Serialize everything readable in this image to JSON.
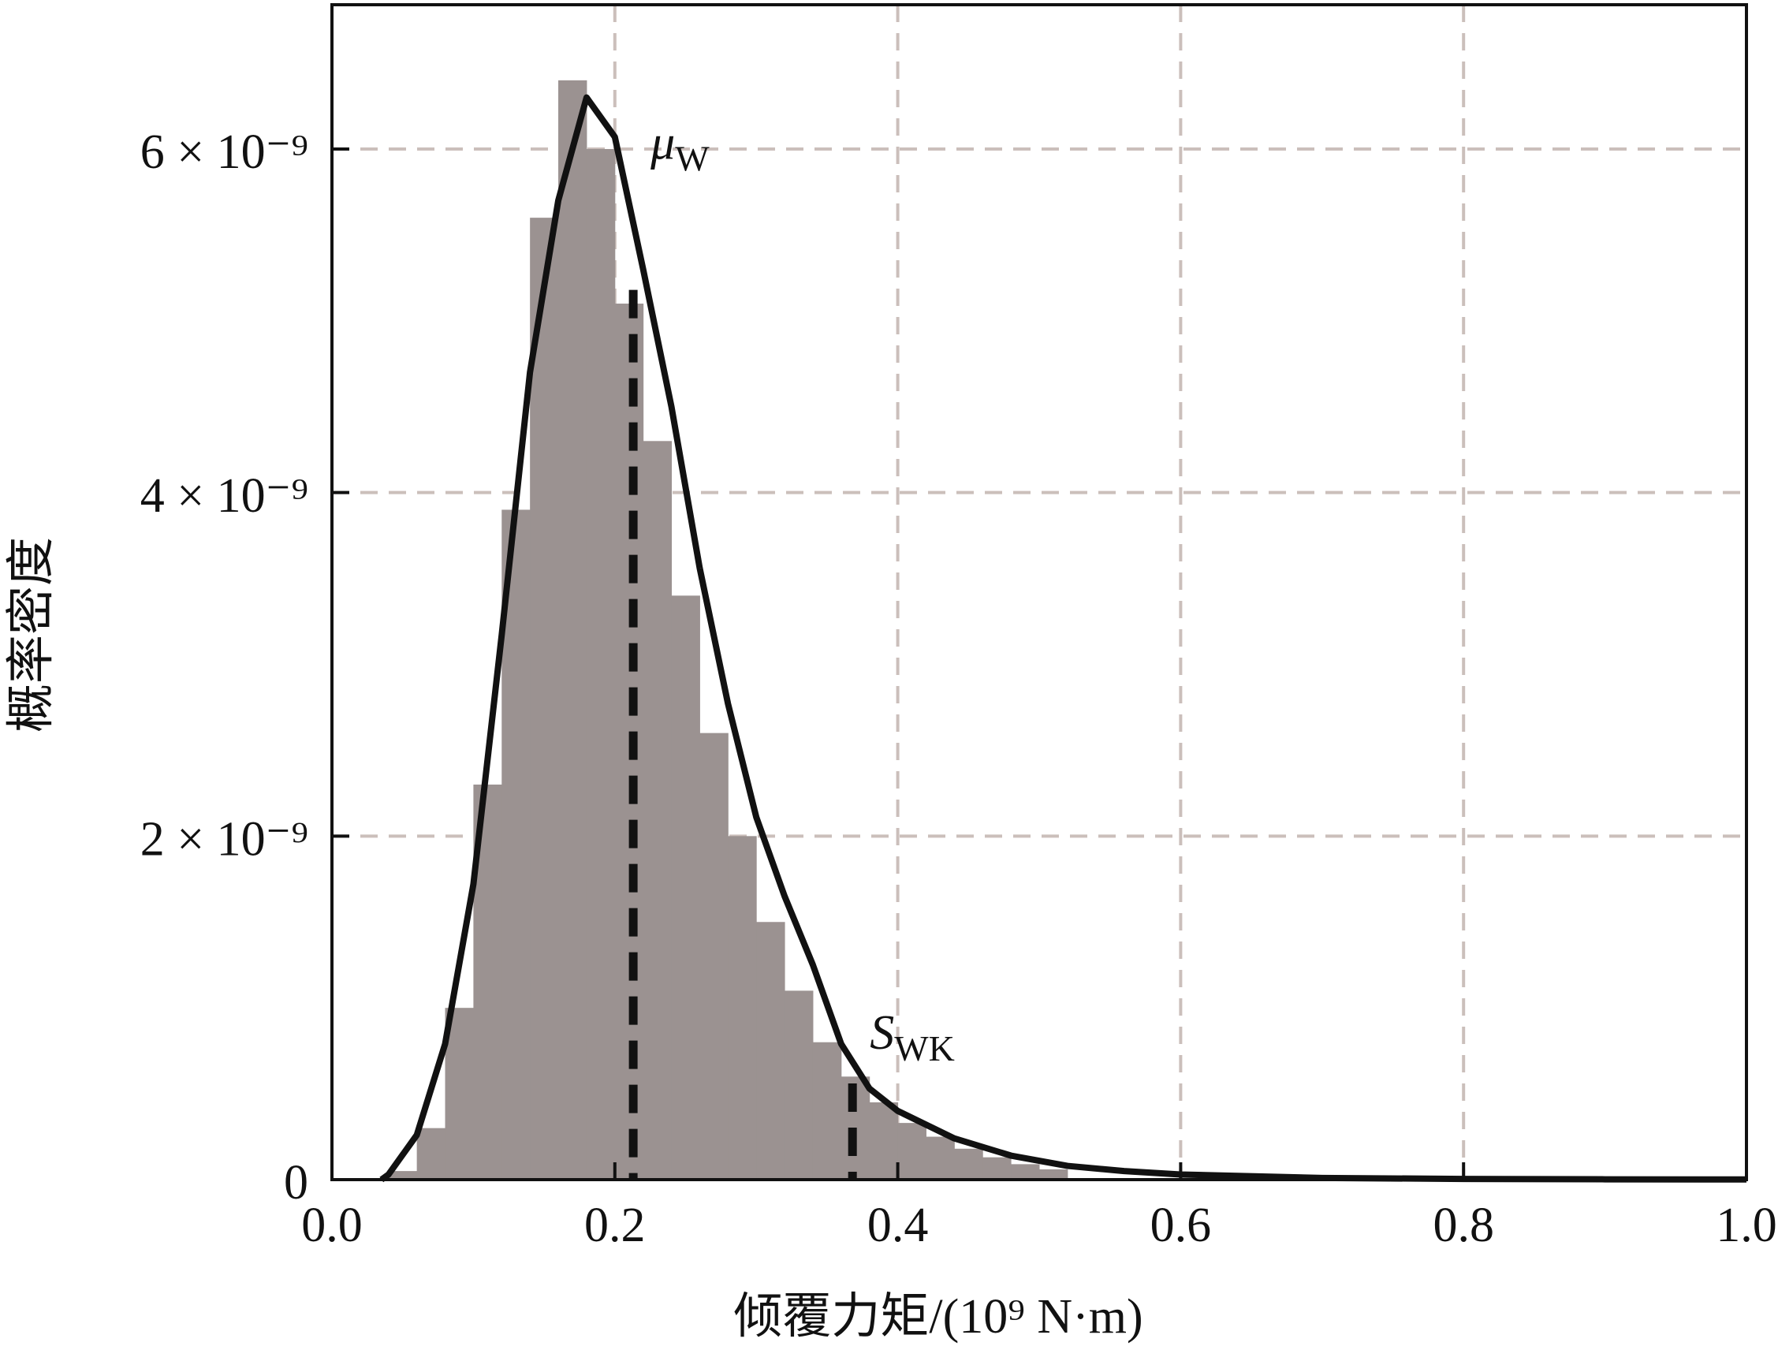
{
  "chart_data": {
    "type": "histogram",
    "x_label": "倾覆力矩/(10⁹ N·m)",
    "y_label": "概率密度",
    "xlim": [
      0,
      1.0
    ],
    "ylim": [
      0,
      6.84e-09
    ],
    "xticks": [
      {
        "value": 0,
        "label": "0.0"
      },
      0.2,
      0.4,
      0.6,
      0.8,
      {
        "value": 1.0,
        "label": "1.0"
      }
    ],
    "yticks": [
      0,
      {
        "value": 2e-09,
        "label": "2 × 10⁻⁹"
      },
      {
        "value": 4e-09,
        "label": "4 × 10⁻⁹"
      },
      {
        "value": 6e-09,
        "label": "6 × 10⁻⁹"
      }
    ],
    "grid": true,
    "histogram": {
      "color": "#9b9291",
      "bins": [
        0.04,
        0.06,
        0.08,
        0.1,
        0.12,
        0.14,
        0.16,
        0.18,
        0.2,
        0.22,
        0.24,
        0.26,
        0.28,
        0.3,
        0.32,
        0.34,
        0.36,
        0.38,
        0.4,
        0.42,
        0.44,
        0.46,
        0.48,
        0.5,
        0.52
      ],
      "counts": [
        5e-11,
        3e-10,
        1e-09,
        2.3e-09,
        3.9e-09,
        5.6e-09,
        6.4e-09,
        6e-09,
        5.1e-09,
        4.3e-09,
        3.4e-09,
        2.6e-09,
        2e-09,
        1.5e-09,
        1.1e-09,
        8e-10,
        6e-10,
        4.5e-10,
        3.3e-10,
        2.5e-10,
        1.8e-10,
        1.3e-10,
        9e-11,
        6e-11
      ]
    },
    "curve": {
      "color": "#111111",
      "x": [
        0.035,
        0.04,
        0.06,
        0.08,
        0.1,
        0.12,
        0.14,
        0.16,
        0.18,
        0.2,
        0.22,
        0.24,
        0.26,
        0.28,
        0.3,
        0.32,
        0.34,
        0.36,
        0.38,
        0.4,
        0.44,
        0.48,
        0.52,
        0.56,
        0.6,
        0.7,
        0.8,
        0.9,
        1.0
      ],
      "y": [
        0,
        3e-11,
        2.6e-10,
        7.9e-10,
        1.72e-09,
        3.17e-09,
        4.7e-09,
        5.7e-09,
        6.3e-09,
        6.07e-09,
        5.3e-09,
        4.5e-09,
        3.56e-09,
        2.77e-09,
        2.11e-09,
        1.65e-09,
        1.25e-09,
        7.9e-10,
        5.3e-10,
        4e-10,
        2.4e-10,
        1.4e-10,
        8e-11,
        5e-11,
        3e-11,
        1e-11,
        4e-12,
        2e-12,
        1e-12
      ]
    },
    "markers": [
      {
        "label": "μ",
        "subscript": "W",
        "x": 0.213,
        "y": 5.18e-09
      },
      {
        "label": "S",
        "subscript": "WK",
        "x": 0.368,
        "y": 5.6e-10
      }
    ]
  }
}
